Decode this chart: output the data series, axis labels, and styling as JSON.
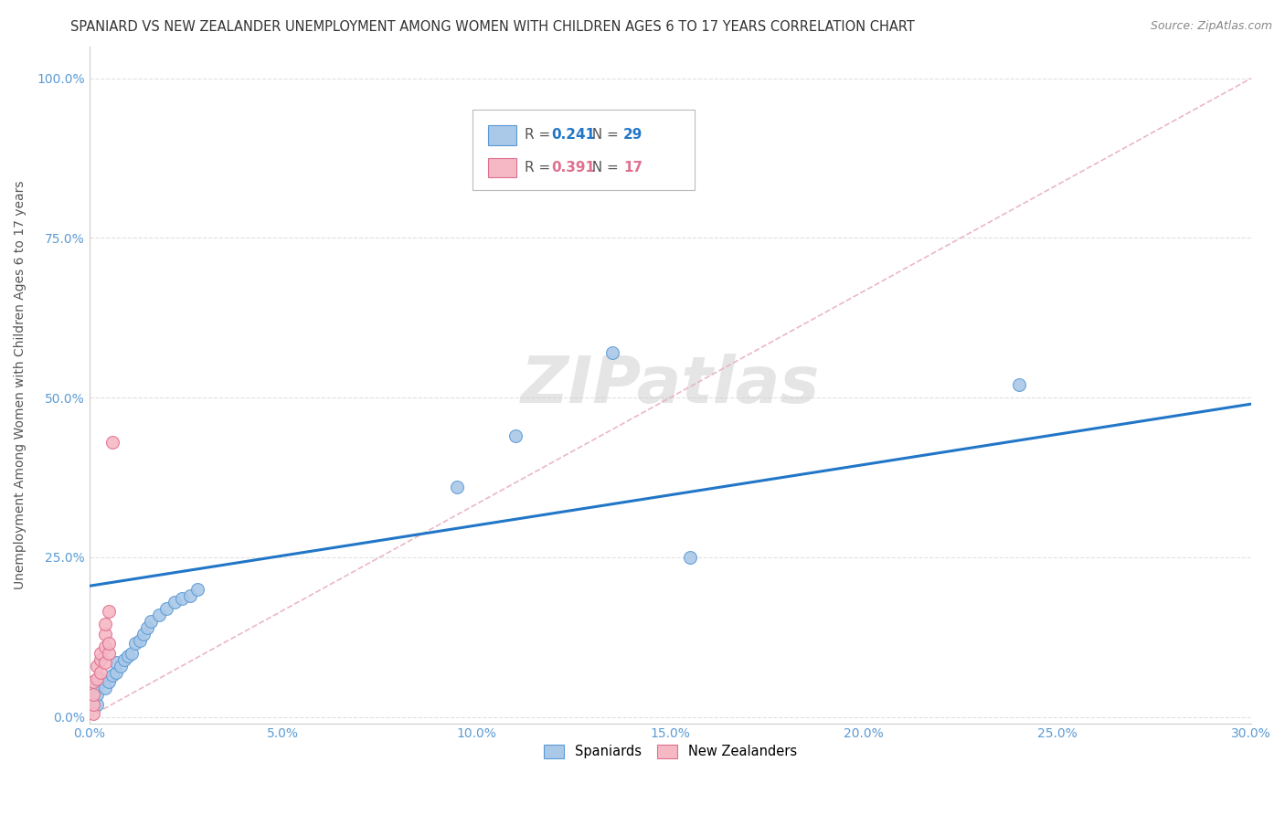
{
  "title": "SPANIARD VS NEW ZEALANDER UNEMPLOYMENT AMONG WOMEN WITH CHILDREN AGES 6 TO 17 YEARS CORRELATION CHART",
  "source": "Source: ZipAtlas.com",
  "ylabel": "Unemployment Among Women with Children Ages 6 to 17 years",
  "xlim": [
    0.0,
    0.3
  ],
  "ylim": [
    -0.01,
    1.05
  ],
  "xtick_vals": [
    0.0,
    0.05,
    0.1,
    0.15,
    0.2,
    0.25,
    0.3
  ],
  "xtick_labels": [
    "0.0%",
    "5.0%",
    "10.0%",
    "15.0%",
    "20.0%",
    "25.0%",
    "30.0%"
  ],
  "ytick_vals": [
    0.0,
    0.25,
    0.5,
    0.75,
    1.0
  ],
  "ytick_labels": [
    "0.0%",
    "25.0%",
    "50.0%",
    "75.0%",
    "100.0%"
  ],
  "spaniard_R": 0.241,
  "spaniard_N": 29,
  "nz_R": 0.391,
  "nz_N": 17,
  "spaniard_color": "#aac8e8",
  "nz_color": "#f5b8c4",
  "spaniard_edge_color": "#5b9bd5",
  "nz_edge_color": "#e07090",
  "trend_spaniard_color": "#2176c7",
  "trend_nz_color": "#e08090",
  "diag_color": "#e8b0c0",
  "background_color": "#ffffff",
  "grid_color": "#dddddd",
  "title_color": "#333333",
  "tick_color": "#5b9bd5",
  "ylabel_color": "#555555",
  "spaniard_points_x": [
    0.002,
    0.002,
    0.002,
    0.003,
    0.004,
    0.005,
    0.006,
    0.007,
    0.007,
    0.008,
    0.009,
    0.01,
    0.011,
    0.012,
    0.013,
    0.014,
    0.015,
    0.016,
    0.018,
    0.02,
    0.022,
    0.024,
    0.026,
    0.028,
    0.095,
    0.11,
    0.135,
    0.155,
    0.24
  ],
  "spaniard_points_y": [
    0.02,
    0.035,
    0.05,
    0.06,
    0.045,
    0.055,
    0.065,
    0.07,
    0.085,
    0.08,
    0.09,
    0.095,
    0.1,
    0.115,
    0.12,
    0.13,
    0.14,
    0.15,
    0.16,
    0.17,
    0.18,
    0.185,
    0.19,
    0.2,
    0.36,
    0.44,
    0.57,
    0.25,
    0.52
  ],
  "nz_points_x": [
    0.001,
    0.001,
    0.001,
    0.001,
    0.002,
    0.002,
    0.003,
    0.003,
    0.003,
    0.004,
    0.004,
    0.004,
    0.004,
    0.005,
    0.005,
    0.005,
    0.006
  ],
  "nz_points_y": [
    0.005,
    0.02,
    0.035,
    0.055,
    0.06,
    0.08,
    0.07,
    0.09,
    0.1,
    0.085,
    0.11,
    0.13,
    0.145,
    0.1,
    0.115,
    0.165,
    0.43
  ],
  "spaniard_trend_x": [
    0.0,
    0.3
  ],
  "spaniard_trend_y": [
    0.205,
    0.49
  ],
  "diag_line_x": [
    0.0,
    0.3
  ],
  "diag_line_y": [
    0.0,
    1.0
  ],
  "marker_size": 100,
  "watermark_text": "ZIPatlas"
}
